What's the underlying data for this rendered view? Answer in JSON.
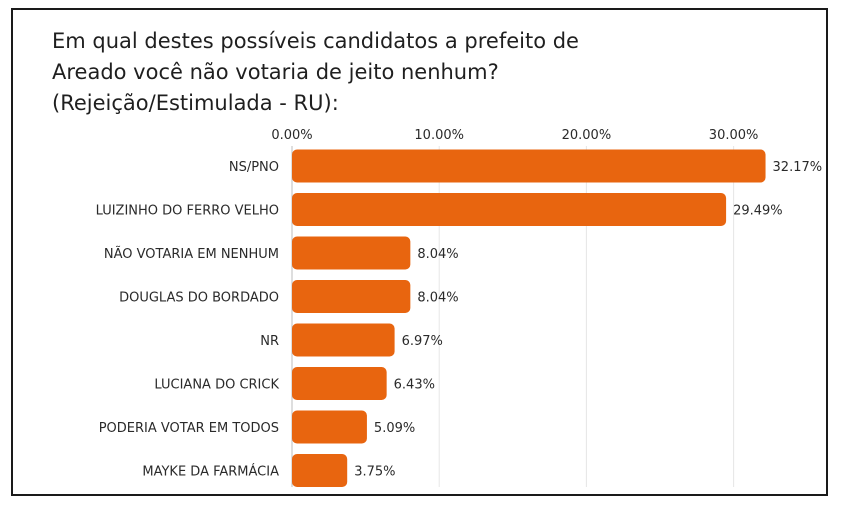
{
  "chart_data": {
    "type": "bar",
    "orientation": "horizontal",
    "title_lines": [
      "Em qual destes possíveis candidatos a prefeito de",
      "Areado você não votaria de jeito nenhum?",
      "(Rejeição/Estimulada - RU):"
    ],
    "categories": [
      "NS/PNO",
      "LUIZINHO DO FERRO VELHO",
      "NÃO VOTARIA EM NENHUM",
      "DOUGLAS DO BORDADO",
      "NR",
      "LUCIANA DO CRICK",
      "PODERIA VOTAR EM TODOS",
      "MAYKE DA FARMÁCIA"
    ],
    "values": [
      32.17,
      29.49,
      8.04,
      8.04,
      6.97,
      6.43,
      5.09,
      3.75
    ],
    "value_labels": [
      "32.17%",
      "29.49%",
      "8.04%",
      "8.04%",
      "6.97%",
      "6.43%",
      "5.09%",
      "3.75%"
    ],
    "x_ticks": [
      0,
      10,
      20,
      30
    ],
    "x_tick_labels": [
      "0.00%",
      "10.00%",
      "20.00%",
      "30.00%"
    ],
    "xlim": [
      0,
      32.5
    ],
    "axis_position": "top",
    "grid": true,
    "bar_color": "#e8650f",
    "grid_color": "#e6e6e6"
  }
}
